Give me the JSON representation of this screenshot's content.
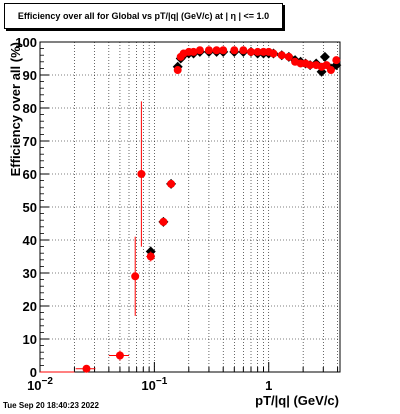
{
  "title": "Efficiency over all for Global vs pT/|q| (GeV/c) at |  η | <= 1.0",
  "timestamp": "Tue Sep 20 18:40:23 2022",
  "colors": {
    "black_series": "#000000",
    "red_series": "#ff0000",
    "grid": "#000000"
  },
  "chart_data": {
    "type": "scatter",
    "title": "Efficiency over all for Global vs pT/|q| (GeV/c) at |  η | <= 1.0",
    "xlabel": "pT/|q| (GeV/c)",
    "ylabel": "Efficiency over all (%)",
    "xscale": "log",
    "xlim": [
      0.01,
      4.2
    ],
    "ylim": [
      0,
      100
    ],
    "grid": true,
    "x_tick_labels": [
      {
        "value": 0.01,
        "base": "10",
        "exp": "−2"
      },
      {
        "value": 0.1,
        "base": "10",
        "exp": "−1"
      },
      {
        "value": 1,
        "base": "1",
        "exp": ""
      }
    ],
    "y_ticks": [
      0,
      10,
      20,
      30,
      40,
      50,
      60,
      70,
      80,
      90,
      100
    ],
    "series": [
      {
        "color": "#000000",
        "marker": "diamond",
        "points": [
          {
            "x": 0.015,
            "y": 0,
            "xerr": 0.005,
            "yerr": 0
          },
          {
            "x": 0.093,
            "y": 36.5,
            "xerr": 0.008,
            "yerr": 1.5
          },
          {
            "x": 0.12,
            "y": 45.5,
            "xerr": 0.006,
            "yerr": 1
          },
          {
            "x": 0.14,
            "y": 57,
            "xerr": 0.004,
            "yerr": 1
          },
          {
            "x": 0.16,
            "y": 92.5,
            "xerr": 0.004,
            "yerr": 1
          },
          {
            "x": 0.17,
            "y": 95,
            "yerr": 0.5
          },
          {
            "x": 0.18,
            "y": 96,
            "yerr": 0.5
          },
          {
            "x": 0.2,
            "y": 96.5,
            "yerr": 0.5
          },
          {
            "x": 0.22,
            "y": 96.5,
            "yerr": 0.5
          },
          {
            "x": 0.25,
            "y": 97,
            "yerr": 0.5
          },
          {
            "x": 0.3,
            "y": 97,
            "yerr": 0.5
          },
          {
            "x": 0.35,
            "y": 97,
            "yerr": 0.5
          },
          {
            "x": 0.4,
            "y": 97,
            "yerr": 0.5
          },
          {
            "x": 0.5,
            "y": 97,
            "yerr": 0.5
          },
          {
            "x": 0.6,
            "y": 97,
            "yerr": 0.5
          },
          {
            "x": 0.7,
            "y": 97,
            "yerr": 0.5
          },
          {
            "x": 0.8,
            "y": 96.5,
            "yerr": 0.5
          },
          {
            "x": 0.9,
            "y": 96.5,
            "yerr": 0.5
          },
          {
            "x": 1.0,
            "y": 96.5,
            "yerr": 0.5
          },
          {
            "x": 1.1,
            "y": 96.5,
            "yerr": 0.5
          },
          {
            "x": 1.3,
            "y": 96,
            "yerr": 0.5
          },
          {
            "x": 1.5,
            "y": 95.5,
            "yerr": 0.5
          },
          {
            "x": 1.7,
            "y": 94.5,
            "yerr": 0.5
          },
          {
            "x": 1.9,
            "y": 94,
            "yerr": 0.5
          },
          {
            "x": 2.1,
            "y": 93.5,
            "yerr": 0.5
          },
          {
            "x": 2.3,
            "y": 93,
            "yerr": 0.5
          },
          {
            "x": 2.6,
            "y": 93.5,
            "yerr": 0.5
          },
          {
            "x": 2.9,
            "y": 91,
            "yerr": 0.8
          },
          {
            "x": 3.1,
            "y": 95.5,
            "yerr": 0.8
          },
          {
            "x": 3.5,
            "y": 92,
            "yerr": 0.8
          },
          {
            "x": 3.9,
            "y": 93,
            "yerr": 0.8
          }
        ]
      },
      {
        "color": "#ff0000",
        "marker": "circle",
        "points": [
          {
            "x": 0.015,
            "y": 0,
            "xerr": 0.005,
            "yerr": 0
          },
          {
            "x": 0.0255,
            "y": 1,
            "xerr": 0.005,
            "yerr": 0.5
          },
          {
            "x": 0.05,
            "y": 5,
            "xerr": 0.01,
            "yerr": 1.5
          },
          {
            "x": 0.068,
            "y": 29,
            "xerr": 0.003,
            "yerr": 12
          },
          {
            "x": 0.077,
            "y": 60,
            "xerr": 0.003,
            "yerr": 22
          },
          {
            "x": 0.093,
            "y": 35,
            "xerr": 0.008,
            "yerr": 1.5
          },
          {
            "x": 0.12,
            "y": 45.5,
            "xerr": 0.006,
            "yerr": 1
          },
          {
            "x": 0.14,
            "y": 57,
            "xerr": 0.004,
            "yerr": 1
          },
          {
            "x": 0.16,
            "y": 91.5,
            "xerr": 0.004,
            "yerr": 1
          },
          {
            "x": 0.17,
            "y": 95.5,
            "yerr": 0.5
          },
          {
            "x": 0.18,
            "y": 96.5,
            "yerr": 0.5
          },
          {
            "x": 0.2,
            "y": 97,
            "yerr": 0.5
          },
          {
            "x": 0.22,
            "y": 97,
            "yerr": 0.5
          },
          {
            "x": 0.25,
            "y": 97.5,
            "yerr": 0.5
          },
          {
            "x": 0.3,
            "y": 97.5,
            "yerr": 0.5
          },
          {
            "x": 0.35,
            "y": 97.5,
            "yerr": 0.5
          },
          {
            "x": 0.4,
            "y": 97.5,
            "yerr": 0.5
          },
          {
            "x": 0.5,
            "y": 97.5,
            "yerr": 0.5
          },
          {
            "x": 0.6,
            "y": 97.5,
            "yerr": 0.5
          },
          {
            "x": 0.7,
            "y": 97,
            "yerr": 0.5
          },
          {
            "x": 0.8,
            "y": 97,
            "yerr": 0.5
          },
          {
            "x": 0.9,
            "y": 97,
            "yerr": 0.5
          },
          {
            "x": 1.0,
            "y": 97,
            "yerr": 0.5
          },
          {
            "x": 1.1,
            "y": 96.5,
            "yerr": 0.5
          },
          {
            "x": 1.3,
            "y": 96,
            "yerr": 0.5
          },
          {
            "x": 1.5,
            "y": 95.5,
            "yerr": 0.5
          },
          {
            "x": 1.7,
            "y": 94,
            "yerr": 0.5
          },
          {
            "x": 1.9,
            "y": 93.5,
            "yerr": 0.5
          },
          {
            "x": 2.1,
            "y": 93.5,
            "yerr": 0.5
          },
          {
            "x": 2.3,
            "y": 93,
            "yerr": 0.5
          },
          {
            "x": 2.6,
            "y": 93,
            "yerr": 0.5
          },
          {
            "x": 2.9,
            "y": 92.5,
            "yerr": 0.8
          },
          {
            "x": 3.2,
            "y": 93,
            "yerr": 0.8
          },
          {
            "x": 3.5,
            "y": 91.5,
            "yerr": 0.8
          },
          {
            "x": 3.9,
            "y": 94.5,
            "yerr": 0.8
          }
        ]
      }
    ]
  }
}
